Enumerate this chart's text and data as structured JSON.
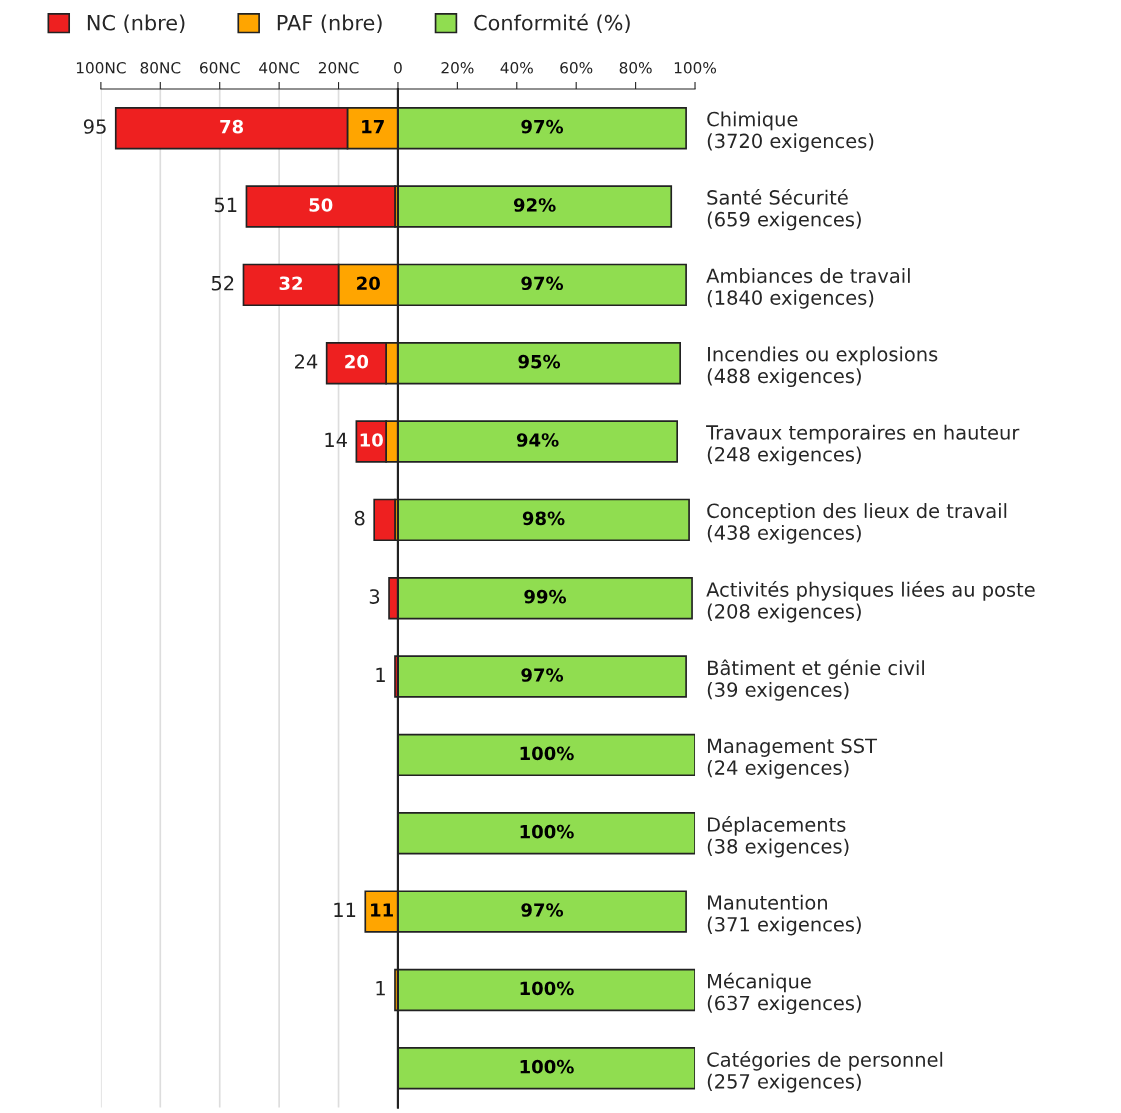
{
  "chart_data": [
    {
      "type": "bar",
      "orientation": "horizontal",
      "stacked": true,
      "tick_labels": "x",
      "categories": [
        null,
        null,
        null,
        null,
        null,
        null,
        null,
        null,
        null,
        null,
        null,
        null,
        null
      ],
      "series": [
        {
          "name": "PAF (nbre)",
          "color": "#ffa500",
          "values": [
            17,
            1,
            20,
            4,
            4,
            1,
            0,
            0,
            null,
            null,
            11,
            1,
            null
          ],
          "value_labels": [
            "17",
            null,
            "20",
            null,
            null,
            null,
            null,
            null,
            null,
            null,
            "11",
            null,
            null
          ]
        },
        {
          "name": "NC (nbre)",
          "color": "#ee2020",
          "values": [
            78,
            50,
            32,
            20,
            10,
            7,
            3,
            1,
            null,
            null,
            0,
            0,
            null
          ],
          "value_labels": [
            "78",
            "50",
            "32",
            "20",
            "10",
            null,
            null,
            null,
            null,
            null,
            null,
            null,
            null
          ]
        }
      ],
      "totals": [
        "95",
        "51",
        "52",
        "24",
        "14",
        "8",
        "3",
        "1",
        null,
        null,
        "11",
        "1",
        null
      ],
      "xlim": [
        100,
        0
      ],
      "xticks": [
        {
          "value": 100,
          "label": "100NC"
        },
        {
          "value": 80,
          "label": "80NC"
        },
        {
          "value": 60,
          "label": "60NC"
        },
        {
          "value": 40,
          "label": "40NC"
        },
        {
          "value": 20,
          "label": "20NC"
        }
      ],
      "grid": "x",
      "legend": "top"
    },
    {
      "type": "bar",
      "orientation": "horizontal",
      "categories": [
        "Chimique\n(3720 exigences)",
        "Santé Sécurité\n(659 exigences)",
        "Ambiances de travail\n(1840 exigences)",
        "Incendies ou explosions\n(488 exigences)",
        "Travaux temporaires en hauteur\n(248 exigences)",
        "Conception des lieux de travail\n(438 exigences)",
        "Activités physiques liées au poste\n(208 exigences)",
        "Bâtiment et génie civil\n(39 exigences)",
        "Management SST\n(24 exigences)",
        "Déplacements\n(38 exigences)",
        "Manutention\n(371 exigences)",
        "Mécanique\n(637 exigences)",
        "Catégories de personnel\n(257 exigences)"
      ],
      "series": [
        {
          "name": "Conformité (%)",
          "color": "#90dd50",
          "values": [
            97,
            92,
            97,
            95,
            94,
            98,
            99,
            97,
            100,
            100,
            97,
            100,
            100
          ],
          "value_labels": [
            "97%",
            "92%",
            "97%",
            "95%",
            "94%",
            "98%",
            "99%",
            "97%",
            "100%",
            "100%",
            "97%",
            "100%",
            "100%"
          ]
        }
      ],
      "xlim": [
        0,
        100
      ],
      "xticks": [
        0,
        {
          "value": 20,
          "label": "20%"
        },
        {
          "value": 40,
          "label": "40%"
        },
        {
          "value": 60,
          "label": "60%"
        },
        {
          "value": 80,
          "label": "80%"
        },
        {
          "value": 100,
          "label": "100%"
        }
      ],
      "legend": "top"
    }
  ]
}
